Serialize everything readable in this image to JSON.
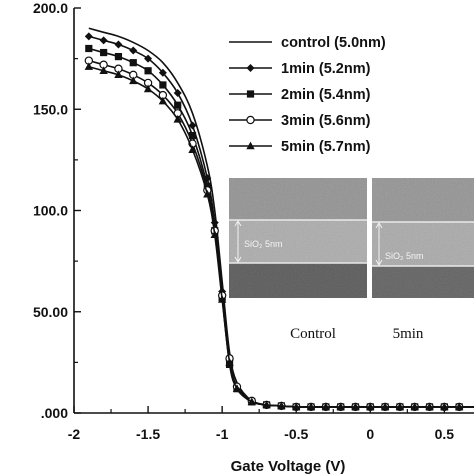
{
  "chart_data": {
    "type": "line",
    "xlabel": "Gate Voltage (V)",
    "ylabel": "",
    "xlim": [
      -2.0,
      0.7
    ],
    "ylim": [
      0,
      200
    ],
    "x_ticks": [
      -2,
      -1.5,
      -1,
      -0.5,
      0,
      0.5
    ],
    "x_tick_labels": [
      "-2",
      "-1.5",
      "-1",
      "-0.5",
      "0",
      "0.5"
    ],
    "y_ticks": [
      0,
      50,
      100,
      150,
      200
    ],
    "y_tick_labels": [
      ".000",
      "50.00",
      "100.0",
      "150.0",
      "200.0"
    ],
    "grid": false,
    "legend_position": "top-right",
    "series": [
      {
        "name": "control (5.0nm)",
        "marker": "none",
        "color": "#111111",
        "x": [
          -1.9,
          -1.8,
          -1.7,
          -1.6,
          -1.5,
          -1.4,
          -1.3,
          -1.2,
          -1.1,
          -1.05,
          -1.0,
          -0.95,
          -0.9,
          -0.8,
          -0.7,
          -0.6,
          -0.5,
          -0.4,
          -0.3,
          -0.2,
          -0.1,
          0,
          0.1,
          0.2,
          0.3,
          0.4,
          0.5,
          0.6,
          0.7
        ],
        "y": [
          190,
          188,
          186,
          183,
          179,
          173,
          163,
          148,
          122,
          100,
          65,
          30,
          15,
          6,
          4,
          3.5,
          3,
          3,
          3,
          3,
          3,
          3,
          3,
          3,
          3,
          3,
          3,
          3,
          3
        ]
      },
      {
        "name": "1min (5.2nm)",
        "marker": "diamond-filled",
        "color": "#111111",
        "x": [
          -1.9,
          -1.8,
          -1.7,
          -1.6,
          -1.5,
          -1.4,
          -1.3,
          -1.2,
          -1.1,
          -1.05,
          -1.0,
          -0.95,
          -0.9,
          -0.8,
          -0.7,
          -0.6,
          -0.5,
          -0.4,
          -0.3,
          -0.2,
          -0.1,
          0,
          0.1,
          0.2,
          0.3,
          0.4,
          0.5,
          0.6,
          0.7
        ],
        "y": [
          186,
          184,
          182,
          179,
          175,
          168,
          158,
          142,
          116,
          94,
          60,
          26,
          13,
          6,
          4,
          3.5,
          3,
          3,
          3,
          3,
          3,
          3,
          3,
          3,
          3,
          3,
          3,
          3,
          3
        ]
      },
      {
        "name": "2min (5.4nm)",
        "marker": "square-filled",
        "color": "#111111",
        "x": [
          -1.9,
          -1.8,
          -1.7,
          -1.6,
          -1.5,
          -1.4,
          -1.3,
          -1.2,
          -1.1,
          -1.05,
          -1.0,
          -0.95,
          -0.9,
          -0.8,
          -0.7,
          -0.6,
          -0.5,
          -0.4,
          -0.3,
          -0.2,
          -0.1,
          0,
          0.1,
          0.2,
          0.3,
          0.4,
          0.5,
          0.6,
          0.7
        ],
        "y": [
          180,
          178,
          176,
          173,
          169,
          162,
          152,
          137,
          112,
          90,
          57,
          24,
          12,
          5.5,
          4,
          3.5,
          3,
          3,
          3,
          3,
          3,
          3,
          3,
          3,
          3,
          3,
          3,
          3,
          3
        ]
      },
      {
        "name": "3min (5.6nm)",
        "marker": "circle-open",
        "color": "#111111",
        "x": [
          -1.9,
          -1.8,
          -1.7,
          -1.6,
          -1.5,
          -1.4,
          -1.3,
          -1.2,
          -1.1,
          -1.05,
          -1.0,
          -0.95,
          -0.9,
          -0.8,
          -0.7,
          -0.6,
          -0.5,
          -0.4,
          -0.3,
          -0.2,
          -0.1,
          0,
          0.1,
          0.2,
          0.3,
          0.4,
          0.5,
          0.6,
          0.7
        ],
        "y": [
          174,
          172,
          170,
          167,
          163,
          157,
          148,
          133,
          110,
          90,
          58,
          27,
          13,
          6,
          4,
          3.5,
          3,
          3,
          3,
          3,
          3,
          3,
          3,
          3,
          3,
          3,
          3,
          3,
          3
        ]
      },
      {
        "name": "5min (5.7nm)",
        "marker": "triangle-filled",
        "color": "#111111",
        "x": [
          -1.9,
          -1.8,
          -1.7,
          -1.6,
          -1.5,
          -1.4,
          -1.3,
          -1.2,
          -1.1,
          -1.05,
          -1.0,
          -0.95,
          -0.9,
          -0.8,
          -0.7,
          -0.6,
          -0.5,
          -0.4,
          -0.3,
          -0.2,
          -0.1,
          0,
          0.1,
          0.2,
          0.3,
          0.4,
          0.5,
          0.6,
          0.7
        ],
        "y": [
          171,
          169,
          167,
          164,
          160,
          154,
          145,
          130,
          108,
          88,
          56,
          25,
          12,
          5.5,
          4,
          3.5,
          3,
          3,
          3,
          3,
          3,
          3,
          3,
          3,
          3,
          3,
          3,
          3,
          3
        ]
      }
    ],
    "insets": [
      {
        "caption": "Control",
        "layer_label": "SiO₂ 5nm"
      },
      {
        "caption": "5min",
        "layer_label": "SiO₂ 5nm"
      }
    ]
  }
}
